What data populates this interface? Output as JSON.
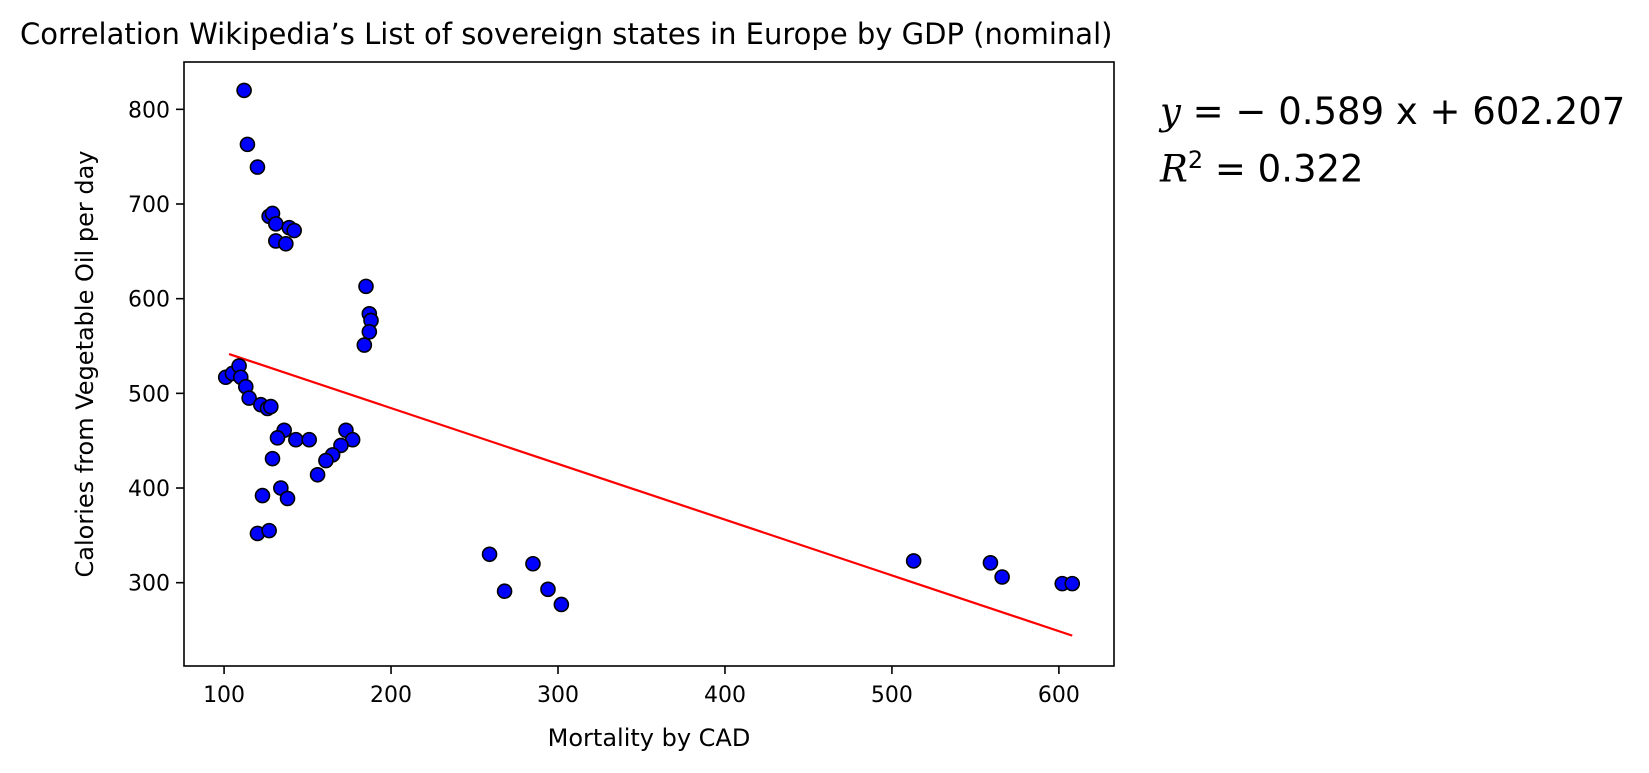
{
  "chart_data": {
    "type": "scatter",
    "title": "Correlation Wikipedia’s List of sovereign states in Europe by GDP (nominal)",
    "xlabel": "Mortality by CAD",
    "ylabel": "Calories from Vegetable Oil per day",
    "xlim": [
      76,
      633
    ],
    "ylim": [
      212,
      850
    ],
    "xticks": [
      100,
      200,
      300,
      400,
      500,
      600
    ],
    "yticks": [
      300,
      400,
      500,
      600,
      700,
      800
    ],
    "grid": false,
    "point_color": "#0000ff",
    "point_edge_color": "#000000",
    "line_color": "#ff0000",
    "points": [
      {
        "x": 112,
        "y": 820
      },
      {
        "x": 114,
        "y": 763
      },
      {
        "x": 120,
        "y": 739
      },
      {
        "x": 127,
        "y": 687
      },
      {
        "x": 129,
        "y": 690
      },
      {
        "x": 131,
        "y": 679
      },
      {
        "x": 139,
        "y": 675
      },
      {
        "x": 142,
        "y": 672
      },
      {
        "x": 131,
        "y": 661
      },
      {
        "x": 137,
        "y": 658
      },
      {
        "x": 185,
        "y": 613
      },
      {
        "x": 187,
        "y": 584
      },
      {
        "x": 188,
        "y": 577
      },
      {
        "x": 187,
        "y": 565
      },
      {
        "x": 184,
        "y": 551
      },
      {
        "x": 101,
        "y": 517
      },
      {
        "x": 105,
        "y": 521
      },
      {
        "x": 109,
        "y": 529
      },
      {
        "x": 110,
        "y": 517
      },
      {
        "x": 113,
        "y": 507
      },
      {
        "x": 115,
        "y": 495
      },
      {
        "x": 122,
        "y": 488
      },
      {
        "x": 126,
        "y": 484
      },
      {
        "x": 128,
        "y": 486
      },
      {
        "x": 136,
        "y": 461
      },
      {
        "x": 132,
        "y": 453
      },
      {
        "x": 143,
        "y": 451
      },
      {
        "x": 151,
        "y": 451
      },
      {
        "x": 173,
        "y": 461
      },
      {
        "x": 177,
        "y": 451
      },
      {
        "x": 170,
        "y": 445
      },
      {
        "x": 165,
        "y": 435
      },
      {
        "x": 161,
        "y": 429
      },
      {
        "x": 156,
        "y": 414
      },
      {
        "x": 129,
        "y": 431
      },
      {
        "x": 134,
        "y": 400
      },
      {
        "x": 138,
        "y": 389
      },
      {
        "x": 123,
        "y": 392
      },
      {
        "x": 120,
        "y": 352
      },
      {
        "x": 127,
        "y": 355
      },
      {
        "x": 259,
        "y": 330
      },
      {
        "x": 268,
        "y": 291
      },
      {
        "x": 285,
        "y": 320
      },
      {
        "x": 294,
        "y": 293
      },
      {
        "x": 302,
        "y": 277
      },
      {
        "x": 513,
        "y": 323
      },
      {
        "x": 559,
        "y": 321
      },
      {
        "x": 566,
        "y": 306
      },
      {
        "x": 602,
        "y": 299
      },
      {
        "x": 608,
        "y": 299
      }
    ],
    "fit": {
      "slope": -0.589,
      "intercept": 602.207,
      "x_range": [
        103,
        608
      ],
      "equation_lhs": "y",
      "equation_rhs": "= − 0.589 x + 602.207",
      "r2_lhs": "R",
      "r2_rhs": "= 0.322"
    }
  }
}
